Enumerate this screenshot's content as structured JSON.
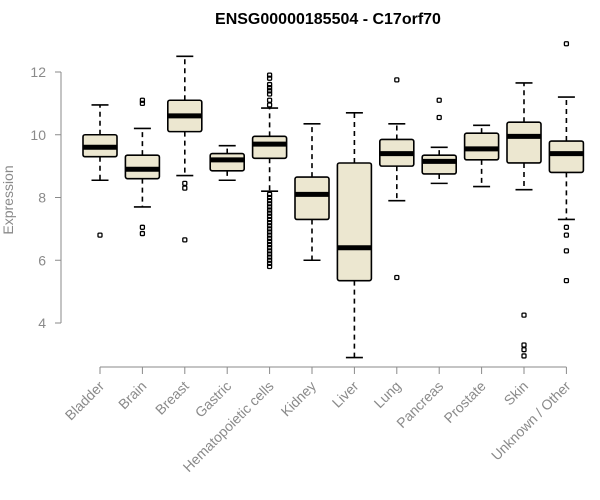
{
  "chart_data": {
    "type": "boxplot",
    "title": "ENSG00000185504 - C17orf70",
    "xlabel": "",
    "ylabel": "Expression",
    "ylim": [
      2.6,
      13.2
    ],
    "yticks": [
      4,
      6,
      8,
      10,
      12
    ],
    "grid": false,
    "legend": "none",
    "box_fill_color": "#ece7d0",
    "line_color": "#000000",
    "axis_color": "#8a8a8a",
    "categories": [
      "Bladder",
      "Brain",
      "Breast",
      "Gastric",
      "Hematopoietic cells",
      "Kidney",
      "Liver",
      "Lung",
      "Pancreas",
      "Prostate",
      "Skin",
      "Unknown / Other"
    ],
    "boxes": [
      {
        "category": "Bladder",
        "min": 8.55,
        "q1": 9.3,
        "median": 9.6,
        "q3": 10.0,
        "max": 10.95,
        "outliers": [
          6.8
        ]
      },
      {
        "category": "Brain",
        "min": 7.7,
        "q1": 8.6,
        "median": 8.9,
        "q3": 9.35,
        "max": 10.2,
        "outliers": [
          11.0,
          11.1,
          7.05,
          6.85
        ]
      },
      {
        "category": "Breast",
        "min": 8.7,
        "q1": 10.1,
        "median": 10.6,
        "q3": 11.1,
        "max": 12.5,
        "outliers": [
          8.45,
          8.3,
          6.65
        ]
      },
      {
        "category": "Gastric",
        "min": 8.55,
        "q1": 8.85,
        "median": 9.2,
        "q3": 9.4,
        "max": 9.65,
        "outliers": []
      },
      {
        "category": "Hematopoietic cells",
        "min": 8.2,
        "q1": 9.25,
        "median": 9.7,
        "q3": 9.95,
        "max": 10.85,
        "outliers": [
          11.9,
          11.8,
          11.6,
          11.5,
          11.4,
          11.3,
          11.1,
          10.95,
          8.1,
          8.0,
          7.9,
          7.8,
          7.7,
          7.6,
          7.5,
          7.4,
          7.3,
          7.2,
          7.1,
          7.0,
          6.9,
          6.8,
          6.7,
          6.6,
          6.5,
          6.4,
          6.3,
          6.2,
          6.1,
          6.0,
          5.9,
          5.8
        ]
      },
      {
        "category": "Kidney",
        "min": 6.0,
        "q1": 7.3,
        "median": 8.1,
        "q3": 8.65,
        "max": 10.35,
        "outliers": []
      },
      {
        "category": "Liver",
        "min": 2.9,
        "q1": 5.35,
        "median": 6.4,
        "q3": 9.1,
        "max": 10.7,
        "outliers": []
      },
      {
        "category": "Lung",
        "min": 7.9,
        "q1": 9.0,
        "median": 9.4,
        "q3": 9.85,
        "max": 10.35,
        "outliers": [
          11.75,
          5.45
        ]
      },
      {
        "category": "Pancreas",
        "min": 8.45,
        "q1": 8.75,
        "median": 9.15,
        "q3": 9.35,
        "max": 9.6,
        "outliers": [
          11.1,
          10.55
        ]
      },
      {
        "category": "Prostate",
        "min": 8.35,
        "q1": 9.2,
        "median": 9.55,
        "q3": 10.05,
        "max": 10.3,
        "outliers": []
      },
      {
        "category": "Skin",
        "min": 8.25,
        "q1": 9.1,
        "median": 9.95,
        "q3": 10.4,
        "max": 11.65,
        "outliers": [
          4.25,
          3.3,
          3.15,
          2.95
        ]
      },
      {
        "category": "Unknown / Other",
        "min": 7.3,
        "q1": 8.8,
        "median": 9.4,
        "q3": 9.8,
        "max": 11.2,
        "outliers": [
          12.9,
          7.05,
          6.8,
          6.3,
          5.35
        ]
      }
    ]
  }
}
